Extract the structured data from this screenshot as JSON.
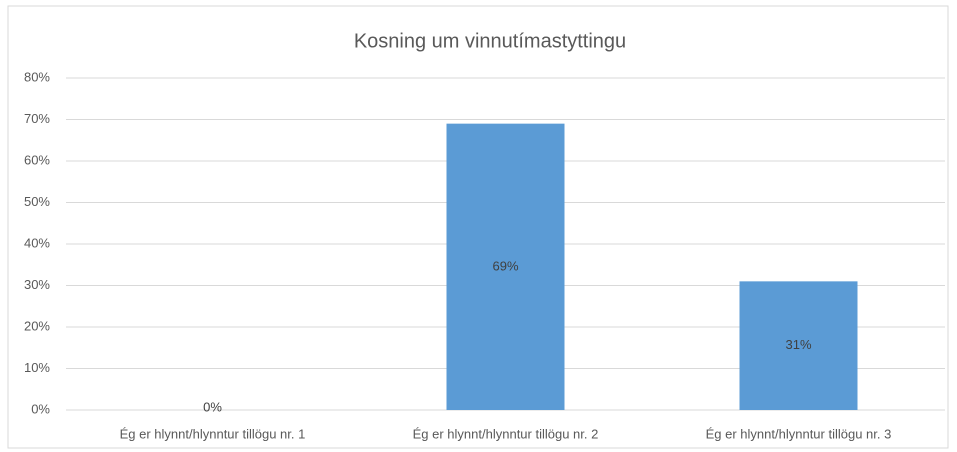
{
  "chart_data": {
    "type": "bar",
    "title": "Kosning um vinnutímastyttingu",
    "categories": [
      "Ég er hlynnt/hlynntur tillögu nr. 1",
      "Ég er hlynnt/hlynntur tillögu nr. 2",
      "Ég er hlynnt/hlynntur tillögu nr. 3"
    ],
    "values": [
      0,
      69,
      31
    ],
    "value_labels": [
      "0%",
      "69%",
      "31%"
    ],
    "color": "#5b9bd5",
    "ylim": [
      0,
      80
    ],
    "yticks": [
      {
        "value": 0,
        "label": "0%"
      },
      {
        "value": 10,
        "label": "10%"
      },
      {
        "value": 20,
        "label": "20%"
      },
      {
        "value": 30,
        "label": "30%"
      },
      {
        "value": 40,
        "label": "40%"
      },
      {
        "value": 50,
        "label": "50%"
      },
      {
        "value": 60,
        "label": "60%"
      },
      {
        "value": 70,
        "label": "70%"
      },
      {
        "value": 80,
        "label": "80%"
      }
    ],
    "grid": true
  }
}
